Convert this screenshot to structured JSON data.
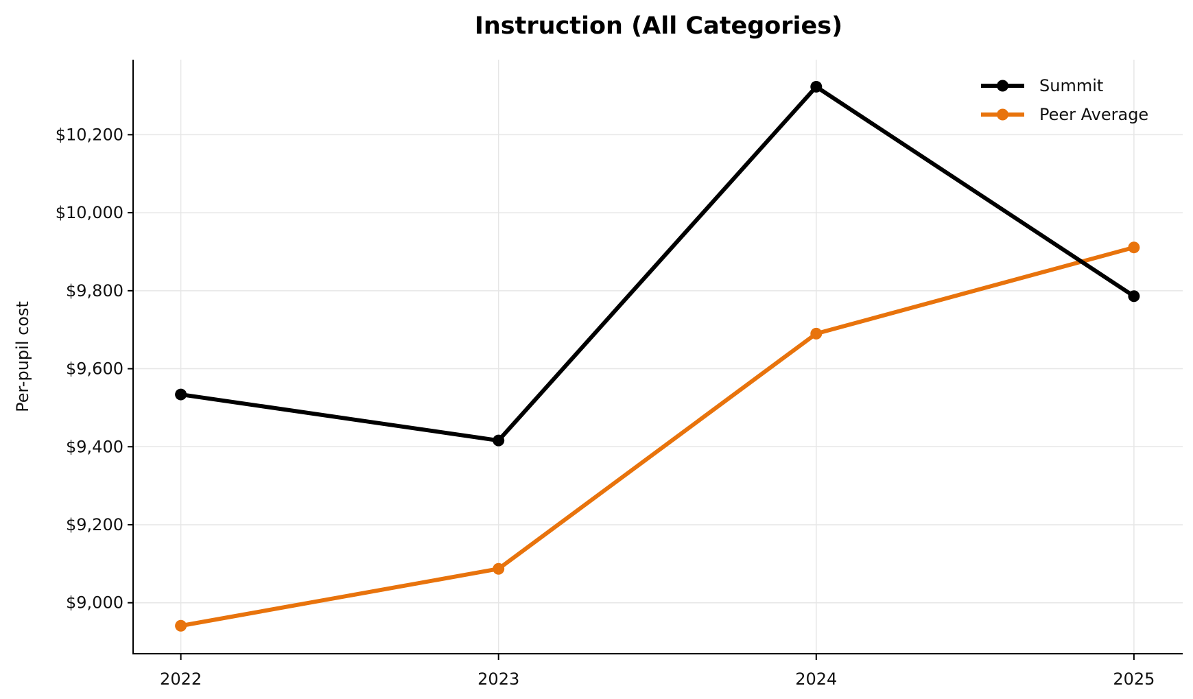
{
  "chart_data": {
    "type": "line",
    "title": "Instruction (All Categories)",
    "xlabel": "",
    "ylabel": "Per-pupil cost",
    "categories": [
      "2022",
      "2023",
      "2024",
      "2025"
    ],
    "series": [
      {
        "name": "Summit",
        "color": "#000000",
        "values": [
          9534,
          9416,
          10323,
          9786
        ]
      },
      {
        "name": "Peer Average",
        "color": "#e8730c",
        "values": [
          8941,
          9087,
          9690,
          9911
        ]
      }
    ],
    "yticks": [
      9000,
      9200,
      9400,
      9600,
      9800,
      10000,
      10200
    ],
    "ytick_labels": [
      "$9,000",
      "$9,200",
      "$9,400",
      "$9,600",
      "$9,800",
      "$10,000",
      "$10,200"
    ],
    "ylim": [
      8869,
      10395
    ],
    "grid": true,
    "legend_position": "upper right",
    "markers": "circle"
  }
}
